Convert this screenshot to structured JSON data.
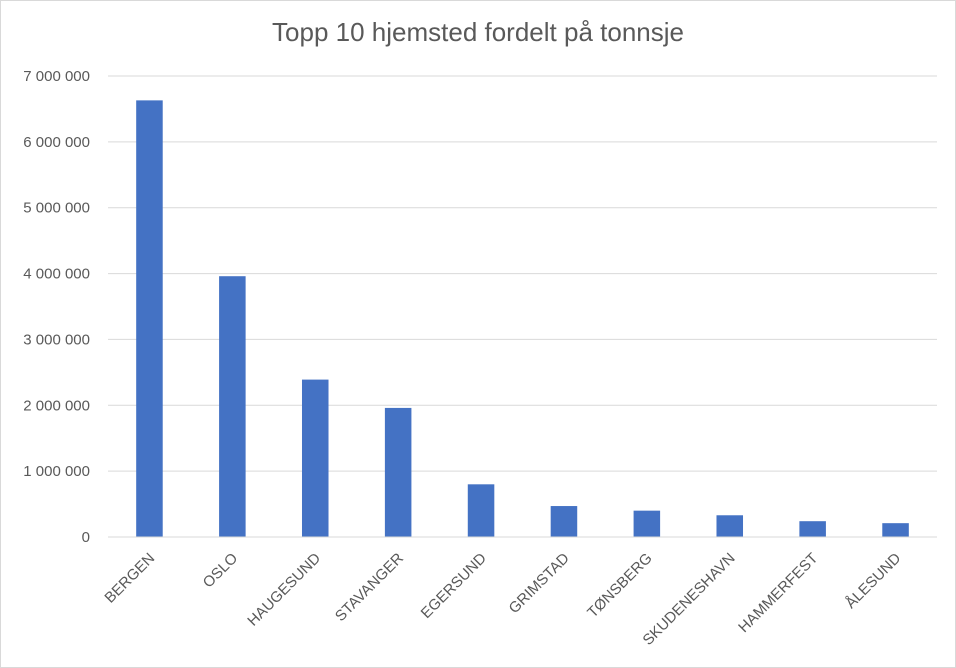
{
  "chart_data": {
    "type": "bar",
    "title": "Topp 10 hjemsted fordelt på tonnsje",
    "xlabel": "",
    "ylabel": "",
    "categories": [
      "BERGEN",
      "OSLO",
      "HAUGESUND",
      "STAVANGER",
      "EGERSUND",
      "GRIMSTAD",
      "TØNSBERG",
      "SKUDENESHAVN",
      "HAMMERFEST",
      "ÅLESUND"
    ],
    "values": [
      6630000,
      3960000,
      2390000,
      1960000,
      800000,
      470000,
      400000,
      330000,
      240000,
      210000
    ],
    "ylim": [
      0,
      7000000
    ],
    "yticks": [
      0,
      1000000,
      2000000,
      3000000,
      4000000,
      5000000,
      6000000,
      7000000
    ],
    "ytick_labels": [
      "0",
      "1 000 000",
      "2 000 000",
      "3 000 000",
      "4 000 000",
      "5 000 000",
      "6 000 000",
      "7 000 000"
    ],
    "grid": true,
    "legend": "none",
    "bar_color": "#4472c4",
    "grid_color": "#d9d9d9"
  }
}
